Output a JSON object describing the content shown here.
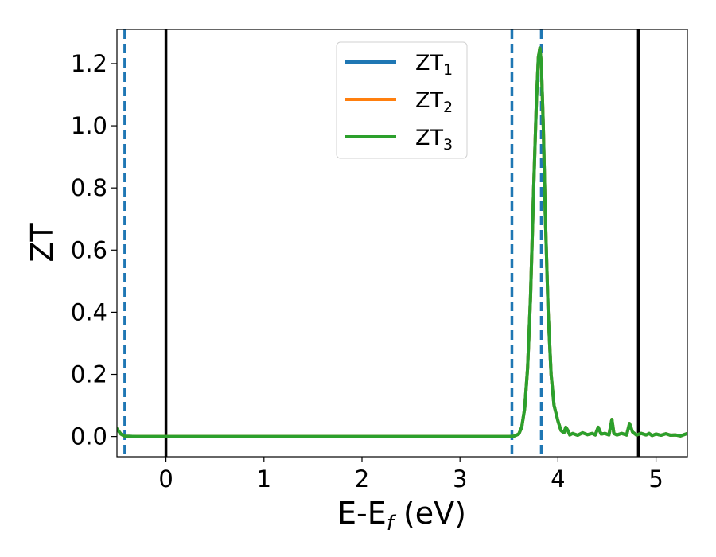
{
  "chart_data": {
    "type": "line",
    "title": "",
    "xlabel": {
      "base": "E-E",
      "sub": "f",
      "tail": " (eV)"
    },
    "ylabel": "ZT",
    "xlim": [
      -0.5,
      5.32
    ],
    "ylim": [
      -0.065,
      1.31
    ],
    "xticks": [
      0,
      1,
      2,
      3,
      4,
      5
    ],
    "xtick_labels": [
      "0",
      "1",
      "2",
      "3",
      "4",
      "5"
    ],
    "yticks": [
      0.0,
      0.2,
      0.4,
      0.6,
      0.8,
      1.0,
      1.2
    ],
    "ytick_labels": [
      "0.0",
      "0.2",
      "0.4",
      "0.6",
      "0.8",
      "1.0",
      "1.2"
    ],
    "grid": false,
    "legend_position": "top-center",
    "vlines": [
      {
        "x": -0.42,
        "style": "dashed",
        "color": "#1f77b4"
      },
      {
        "x": 0.0,
        "style": "solid",
        "color": "#000000"
      },
      {
        "x": 3.53,
        "style": "dashed",
        "color": "#1f77b4"
      },
      {
        "x": 3.83,
        "style": "dashed",
        "color": "#1f77b4"
      },
      {
        "x": 4.82,
        "style": "solid",
        "color": "#000000"
      }
    ],
    "series": [
      {
        "name": {
          "base": "ZT",
          "sub": "1"
        },
        "color": "#1f77b4",
        "x": [
          -0.5,
          -0.46,
          -0.42,
          -0.3,
          0.0,
          1.0,
          2.0,
          3.0,
          3.5,
          3.55,
          3.6,
          3.63,
          3.66,
          3.69,
          3.72,
          3.75,
          3.78,
          3.8,
          3.815,
          3.83,
          3.85,
          3.87,
          3.9,
          3.93,
          3.96,
          4.0,
          4.03,
          4.06,
          4.08,
          4.1,
          4.12,
          4.15,
          4.2,
          4.25,
          4.3,
          4.35,
          4.38,
          4.41,
          4.44,
          4.48,
          4.52,
          4.55,
          4.57,
          4.6,
          4.65,
          4.7,
          4.73,
          4.76,
          4.8,
          4.85,
          4.9,
          4.93,
          4.96,
          5.0,
          5.05,
          5.1,
          5.15,
          5.2,
          5.25,
          5.32
        ],
        "y": [
          0.025,
          0.008,
          0.001,
          0.0,
          0.0,
          0.0,
          0.0,
          0.0,
          0.0,
          0.001,
          0.008,
          0.03,
          0.09,
          0.22,
          0.45,
          0.78,
          1.08,
          1.22,
          1.25,
          1.2,
          1.0,
          0.72,
          0.4,
          0.2,
          0.1,
          0.05,
          0.02,
          0.012,
          0.03,
          0.02,
          0.005,
          0.01,
          0.004,
          0.012,
          0.006,
          0.01,
          0.005,
          0.03,
          0.008,
          0.01,
          0.005,
          0.055,
          0.01,
          0.005,
          0.01,
          0.005,
          0.042,
          0.015,
          0.005,
          0.01,
          0.005,
          0.01,
          0.003,
          0.008,
          0.004,
          0.009,
          0.004,
          0.005,
          0.002,
          0.01
        ]
      },
      {
        "name": {
          "base": "ZT",
          "sub": "2"
        },
        "color": "#ff7f0e",
        "x": [
          -0.5,
          -0.46,
          -0.42,
          -0.3,
          0.0,
          1.0,
          2.0,
          3.0,
          3.5,
          3.55,
          3.6,
          3.63,
          3.66,
          3.69,
          3.72,
          3.75,
          3.78,
          3.8,
          3.815,
          3.83,
          3.85,
          3.87,
          3.9,
          3.93,
          3.96,
          4.0,
          4.03,
          4.06,
          4.08,
          4.1,
          4.12,
          4.15,
          4.2,
          4.25,
          4.3,
          4.35,
          4.38,
          4.41,
          4.44,
          4.48,
          4.52,
          4.55,
          4.57,
          4.6,
          4.65,
          4.7,
          4.73,
          4.76,
          4.8,
          4.85,
          4.9,
          4.93,
          4.96,
          5.0,
          5.05,
          5.1,
          5.15,
          5.2,
          5.25,
          5.32
        ],
        "y": [
          0.025,
          0.008,
          0.001,
          0.0,
          0.0,
          0.0,
          0.0,
          0.0,
          0.0,
          0.001,
          0.008,
          0.03,
          0.09,
          0.22,
          0.45,
          0.78,
          1.08,
          1.22,
          1.25,
          1.2,
          1.0,
          0.72,
          0.4,
          0.2,
          0.1,
          0.05,
          0.02,
          0.012,
          0.03,
          0.02,
          0.005,
          0.01,
          0.004,
          0.012,
          0.006,
          0.01,
          0.005,
          0.03,
          0.008,
          0.01,
          0.005,
          0.055,
          0.01,
          0.005,
          0.01,
          0.005,
          0.042,
          0.015,
          0.005,
          0.01,
          0.005,
          0.01,
          0.003,
          0.008,
          0.004,
          0.009,
          0.004,
          0.005,
          0.002,
          0.01
        ]
      },
      {
        "name": {
          "base": "ZT",
          "sub": "3"
        },
        "color": "#2ca02c",
        "x": [
          -0.5,
          -0.46,
          -0.42,
          -0.3,
          0.0,
          1.0,
          2.0,
          3.0,
          3.5,
          3.55,
          3.6,
          3.63,
          3.66,
          3.69,
          3.72,
          3.75,
          3.78,
          3.8,
          3.815,
          3.83,
          3.85,
          3.87,
          3.9,
          3.93,
          3.96,
          4.0,
          4.03,
          4.06,
          4.08,
          4.1,
          4.12,
          4.15,
          4.2,
          4.25,
          4.3,
          4.35,
          4.38,
          4.41,
          4.44,
          4.48,
          4.52,
          4.55,
          4.57,
          4.6,
          4.65,
          4.7,
          4.73,
          4.76,
          4.8,
          4.85,
          4.9,
          4.93,
          4.96,
          5.0,
          5.05,
          5.1,
          5.15,
          5.2,
          5.25,
          5.32
        ],
        "y": [
          0.025,
          0.008,
          0.001,
          0.0,
          0.0,
          0.0,
          0.0,
          0.0,
          0.0,
          0.001,
          0.008,
          0.03,
          0.09,
          0.22,
          0.45,
          0.78,
          1.08,
          1.22,
          1.25,
          1.2,
          1.0,
          0.72,
          0.4,
          0.2,
          0.1,
          0.05,
          0.02,
          0.012,
          0.03,
          0.02,
          0.005,
          0.01,
          0.004,
          0.012,
          0.006,
          0.01,
          0.005,
          0.03,
          0.008,
          0.01,
          0.005,
          0.055,
          0.01,
          0.005,
          0.01,
          0.005,
          0.042,
          0.015,
          0.005,
          0.01,
          0.005,
          0.01,
          0.003,
          0.008,
          0.004,
          0.009,
          0.004,
          0.005,
          0.002,
          0.01
        ]
      }
    ]
  }
}
